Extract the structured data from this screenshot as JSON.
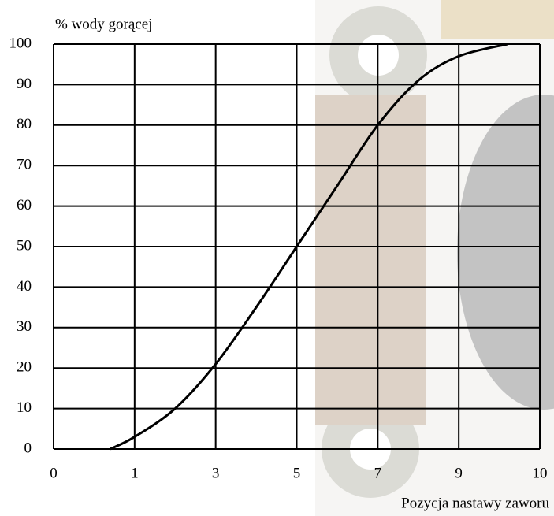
{
  "chart_data": {
    "type": "line",
    "title": "% wody gorącej",
    "x_label": "Pozycja nastawy zaworu",
    "x": [
      0.7,
      1,
      2,
      3,
      4,
      5,
      6,
      7,
      8,
      9,
      9.6
    ],
    "values": [
      0,
      3,
      10,
      21,
      35,
      50,
      65,
      80,
      91,
      97,
      100
    ],
    "color": "#000000",
    "xlim": [
      0,
      10
    ],
    "xticks": [
      0,
      1,
      3,
      5,
      7,
      9,
      10
    ],
    "ylim": [
      0,
      100
    ],
    "yticks": [
      0,
      10,
      20,
      30,
      40,
      50,
      60,
      70,
      80,
      90,
      100
    ],
    "grid": true
  }
}
